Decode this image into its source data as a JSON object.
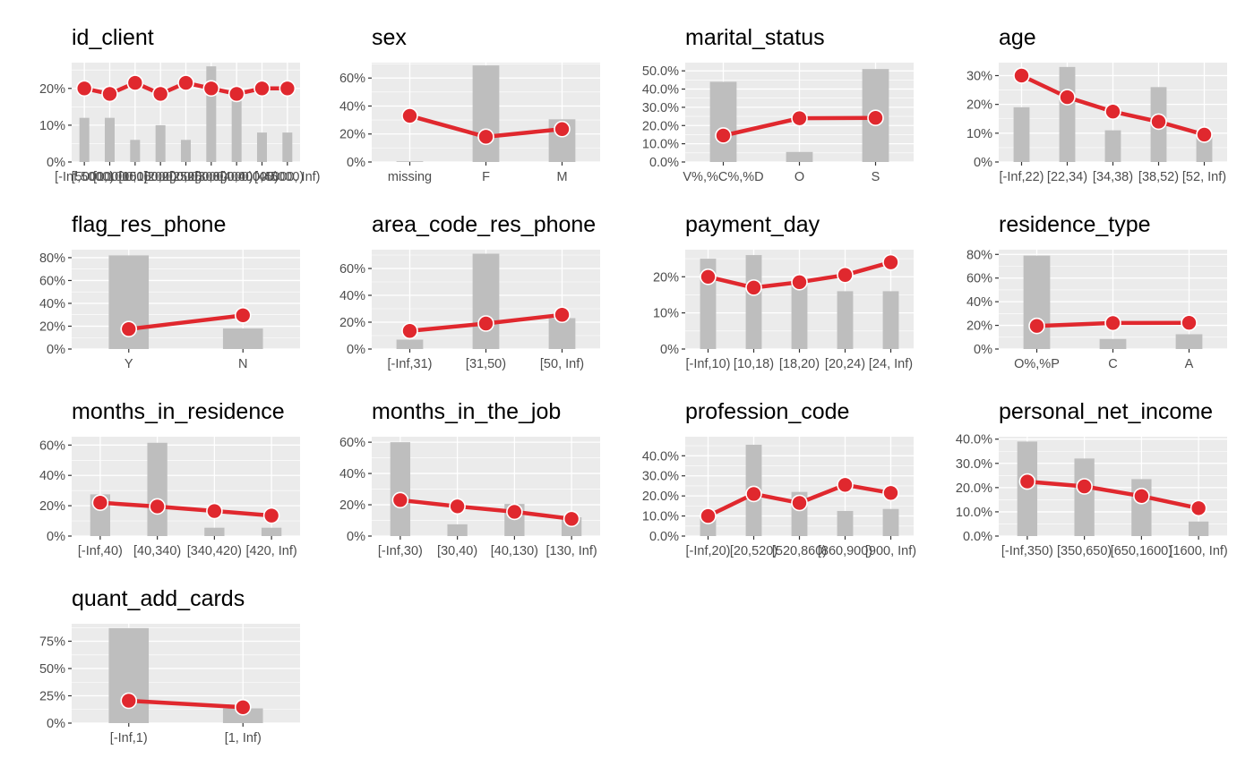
{
  "colors": {
    "panel_bg": "#EBEBEB",
    "grid": "#FFFFFF",
    "bar": "#BEBEBE",
    "line": "#E0282E",
    "point_stroke": "#FFFFFF",
    "tick": "#333333",
    "tick_label": "#4D4D4D",
    "title": "#000000"
  },
  "chart_data": [
    {
      "type": "bar",
      "title": "id_client",
      "categories": [
        "[-Inf,5000)",
        "[5000,10000)",
        "[10000,15000)",
        "[15000,20000)",
        "[20000,25000)",
        "[25000,30000)",
        "[30000,40000)",
        "[40000,45000)",
        "[45000, Inf)"
      ],
      "ylim": [
        0,
        0.27
      ],
      "y_ticks": [
        0,
        0.1,
        0.2
      ],
      "y_tick_labels": [
        "0%",
        "10%",
        "20%"
      ],
      "series": [
        {
          "kind": "bar",
          "values": [
            0.12,
            0.12,
            0.06,
            0.1,
            0.06,
            0.26,
            0.17,
            0.08,
            0.08
          ]
        },
        {
          "kind": "line",
          "values": [
            0.2,
            0.185,
            0.215,
            0.185,
            0.215,
            0.2,
            0.185,
            0.2,
            0.2
          ]
        }
      ]
    },
    {
      "type": "bar",
      "title": "sex",
      "categories": [
        "missing",
        "F",
        "M"
      ],
      "ylim": [
        0,
        0.71
      ],
      "y_ticks": [
        0,
        0.2,
        0.4,
        0.6
      ],
      "y_tick_labels": [
        "0%",
        "20%",
        "40%",
        "60%"
      ],
      "series": [
        {
          "kind": "bar",
          "values": [
            0.005,
            0.69,
            0.305
          ]
        },
        {
          "kind": "line",
          "values": [
            0.33,
            0.18,
            0.235
          ]
        }
      ]
    },
    {
      "type": "bar",
      "title": "marital_status",
      "categories": [
        "V%,%C%,%D",
        "O",
        "S"
      ],
      "ylim": [
        0,
        0.545
      ],
      "y_ticks": [
        0,
        0.1,
        0.2,
        0.3,
        0.4,
        0.5
      ],
      "y_tick_labels": [
        "0.0%",
        "10.0%",
        "20.0%",
        "30.0%",
        "40.0%",
        "50.0%"
      ],
      "series": [
        {
          "kind": "bar",
          "values": [
            0.44,
            0.055,
            0.51
          ]
        },
        {
          "kind": "line",
          "values": [
            0.145,
            0.24,
            0.242
          ]
        }
      ]
    },
    {
      "type": "bar",
      "title": "age",
      "categories": [
        "[-Inf,22)",
        "[22,34)",
        "[34,38)",
        "[38,52)",
        "[52, Inf)"
      ],
      "ylim": [
        0,
        0.345
      ],
      "y_ticks": [
        0,
        0.1,
        0.2,
        0.3
      ],
      "y_tick_labels": [
        "0%",
        "10%",
        "20%",
        "30%"
      ],
      "series": [
        {
          "kind": "bar",
          "values": [
            0.19,
            0.33,
            0.11,
            0.26,
            0.1
          ]
        },
        {
          "kind": "line",
          "values": [
            0.3,
            0.225,
            0.175,
            0.14,
            0.095
          ]
        }
      ]
    },
    {
      "type": "bar",
      "title": "flag_res_phone",
      "categories": [
        "Y",
        "N"
      ],
      "ylim": [
        0,
        0.87
      ],
      "y_ticks": [
        0,
        0.2,
        0.4,
        0.6,
        0.8
      ],
      "y_tick_labels": [
        "0%",
        "20%",
        "40%",
        "60%",
        "80%"
      ],
      "series": [
        {
          "kind": "bar",
          "values": [
            0.82,
            0.18
          ]
        },
        {
          "kind": "line",
          "values": [
            0.175,
            0.295
          ]
        }
      ]
    },
    {
      "type": "bar",
      "title": "area_code_res_phone",
      "categories": [
        "[-Inf,31)",
        "[31,50)",
        "[50, Inf)"
      ],
      "ylim": [
        0,
        0.74
      ],
      "y_ticks": [
        0,
        0.2,
        0.4,
        0.6
      ],
      "y_tick_labels": [
        "0%",
        "20%",
        "40%",
        "60%"
      ],
      "series": [
        {
          "kind": "bar",
          "values": [
            0.07,
            0.71,
            0.23
          ]
        },
        {
          "kind": "line",
          "values": [
            0.135,
            0.19,
            0.255
          ]
        }
      ]
    },
    {
      "type": "bar",
      "title": "payment_day",
      "categories": [
        "[-Inf,10)",
        "[10,18)",
        "[18,20)",
        "[20,24)",
        "[24, Inf)"
      ],
      "ylim": [
        0,
        0.275
      ],
      "y_ticks": [
        0,
        0.1,
        0.2
      ],
      "y_tick_labels": [
        "0%",
        "10%",
        "20%"
      ],
      "series": [
        {
          "kind": "bar",
          "values": [
            0.25,
            0.26,
            0.19,
            0.16,
            0.16
          ]
        },
        {
          "kind": "line",
          "values": [
            0.2,
            0.17,
            0.185,
            0.205,
            0.24
          ]
        }
      ]
    },
    {
      "type": "bar",
      "title": "residence_type",
      "categories": [
        "O%,%P",
        "C",
        "A"
      ],
      "ylim": [
        0,
        0.84
      ],
      "y_ticks": [
        0,
        0.2,
        0.4,
        0.6,
        0.8
      ],
      "y_tick_labels": [
        "0%",
        "20%",
        "40%",
        "60%",
        "80%"
      ],
      "series": [
        {
          "kind": "bar",
          "values": [
            0.79,
            0.085,
            0.125
          ]
        },
        {
          "kind": "line",
          "values": [
            0.195,
            0.22,
            0.222
          ]
        }
      ]
    },
    {
      "type": "bar",
      "title": "months_in_residence",
      "categories": [
        "[-Inf,40)",
        "[40,340)",
        "[340,420)",
        "[420, Inf)"
      ],
      "ylim": [
        0,
        0.655
      ],
      "y_ticks": [
        0,
        0.2,
        0.4,
        0.6
      ],
      "y_tick_labels": [
        "0%",
        "20%",
        "40%",
        "60%"
      ],
      "series": [
        {
          "kind": "bar",
          "values": [
            0.275,
            0.615,
            0.055,
            0.055
          ]
        },
        {
          "kind": "line",
          "values": [
            0.22,
            0.195,
            0.165,
            0.135
          ]
        }
      ]
    },
    {
      "type": "bar",
      "title": "months_in_the_job",
      "categories": [
        "[-Inf,30)",
        "[30,40)",
        "[40,130)",
        "[130, Inf)"
      ],
      "ylim": [
        0,
        0.635
      ],
      "y_ticks": [
        0,
        0.2,
        0.4,
        0.6
      ],
      "y_tick_labels": [
        "0%",
        "20%",
        "40%",
        "60%"
      ],
      "series": [
        {
          "kind": "bar",
          "values": [
            0.6,
            0.075,
            0.205,
            0.12
          ]
        },
        {
          "kind": "line",
          "values": [
            0.23,
            0.19,
            0.155,
            0.11
          ]
        }
      ]
    },
    {
      "type": "bar",
      "title": "profession_code",
      "categories": [
        "[-Inf,20)",
        "[20,520)",
        "[520,860)",
        "[860,900)",
        "[900, Inf)"
      ],
      "ylim": [
        0,
        0.495
      ],
      "y_ticks": [
        0,
        0.1,
        0.2,
        0.3,
        0.4
      ],
      "y_tick_labels": [
        "0.0%",
        "10.0%",
        "20.0%",
        "30.0%",
        "40.0%"
      ],
      "series": [
        {
          "kind": "bar",
          "values": [
            0.09,
            0.455,
            0.22,
            0.125,
            0.135
          ]
        },
        {
          "kind": "line",
          "values": [
            0.1,
            0.21,
            0.165,
            0.255,
            0.215
          ]
        }
      ]
    },
    {
      "type": "bar",
      "title": "personal_net_income",
      "categories": [
        "[-Inf,350)",
        "[350,650)",
        "[650,1600)",
        "[1600, Inf)"
      ],
      "ylim": [
        0,
        0.41
      ],
      "y_ticks": [
        0,
        0.1,
        0.2,
        0.3,
        0.4
      ],
      "y_tick_labels": [
        "0.0%",
        "10.0%",
        "20.0%",
        "30.0%",
        "40.0%"
      ],
      "series": [
        {
          "kind": "bar",
          "values": [
            0.39,
            0.32,
            0.235,
            0.06
          ]
        },
        {
          "kind": "line",
          "values": [
            0.225,
            0.205,
            0.165,
            0.115
          ]
        }
      ]
    },
    {
      "type": "bar",
      "title": "quant_add_cards",
      "categories": [
        "[-Inf,1)",
        "[1, Inf)"
      ],
      "ylim": [
        0,
        0.91
      ],
      "y_ticks": [
        0,
        0.25,
        0.5,
        0.75
      ],
      "y_tick_labels": [
        "0%",
        "25%",
        "50%",
        "75%"
      ],
      "series": [
        {
          "kind": "bar",
          "values": [
            0.87,
            0.135
          ]
        },
        {
          "kind": "line",
          "values": [
            0.205,
            0.145
          ]
        }
      ]
    }
  ]
}
